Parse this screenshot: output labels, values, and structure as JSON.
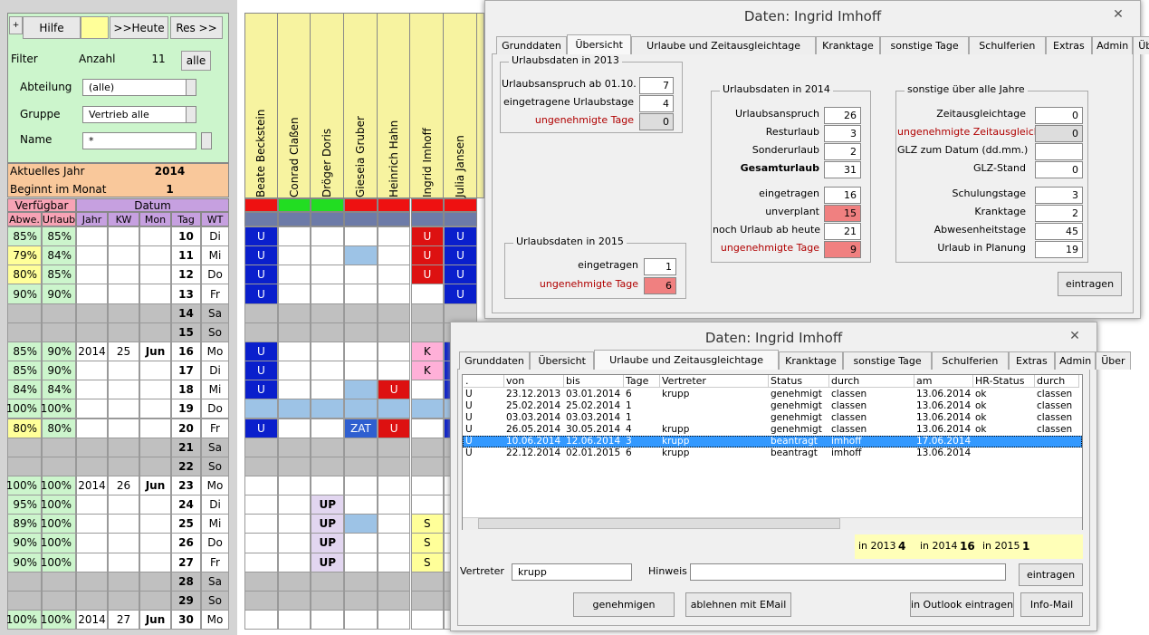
{
  "left": {
    "buttons": {
      "small": "+",
      "hilfe": "Hilfe",
      "heute": ">>Heute",
      "res": "Res >>"
    },
    "filter": {
      "label": "Filter",
      "anzahl_label": "Anzahl",
      "anzahl": 11,
      "alle": "alle"
    },
    "abteilung": {
      "label": "Abteilung",
      "value": "(alle)"
    },
    "gruppe": {
      "label": "Gruppe",
      "value": "Vertrieb alle"
    },
    "name": {
      "label": "Name",
      "value": "*"
    },
    "jahr": {
      "label": "Aktuelles Jahr",
      "value": 2014
    },
    "monat": {
      "label": "Beginnt im Monat",
      "value": 1
    },
    "headers": {
      "verfuegbar": "Verfügbar",
      "datum": "Datum",
      "cols": [
        "Abwe.",
        "Urlaub",
        "Jahr",
        "KW",
        "Mon",
        "Tag",
        "WT"
      ]
    },
    "rows": [
      [
        "85%",
        "85%",
        null,
        null,
        null,
        10,
        "Di"
      ],
      [
        "79%",
        "84%",
        null,
        null,
        null,
        11,
        "Mi"
      ],
      [
        "80%",
        "85%",
        null,
        null,
        null,
        12,
        "Do"
      ],
      [
        "90%",
        "90%",
        null,
        null,
        null,
        13,
        "Fr"
      ],
      [
        null,
        null,
        null,
        null,
        null,
        14,
        "Sa"
      ],
      [
        null,
        null,
        null,
        null,
        null,
        15,
        "So"
      ],
      [
        "85%",
        "90%",
        2014,
        25,
        "Jun",
        16,
        "Mo"
      ],
      [
        "85%",
        "90%",
        null,
        null,
        null,
        17,
        "Di"
      ],
      [
        "84%",
        "84%",
        null,
        null,
        null,
        18,
        "Mi"
      ],
      [
        "100%",
        "100%",
        null,
        null,
        null,
        19,
        "Do"
      ],
      [
        "80%",
        "80%",
        null,
        null,
        null,
        20,
        "Fr"
      ],
      [
        null,
        null,
        null,
        null,
        null,
        21,
        "Sa"
      ],
      [
        null,
        null,
        null,
        null,
        null,
        22,
        "So"
      ],
      [
        "100%",
        "100%",
        2014,
        26,
        "Jun",
        23,
        "Mo"
      ],
      [
        "95%",
        "100%",
        null,
        null,
        null,
        24,
        "Di"
      ],
      [
        "89%",
        "100%",
        null,
        null,
        null,
        25,
        "Mi"
      ],
      [
        "90%",
        "100%",
        null,
        null,
        null,
        26,
        "Do"
      ],
      [
        "90%",
        "100%",
        null,
        null,
        null,
        27,
        "Fr"
      ],
      [
        null,
        null,
        null,
        null,
        null,
        28,
        "Sa"
      ],
      [
        null,
        null,
        null,
        null,
        null,
        29,
        "So"
      ],
      [
        "100%",
        "100%",
        2014,
        27,
        "Jun",
        30,
        "Mo"
      ]
    ]
  },
  "planner": {
    "names": [
      "Beate Beckstein",
      "Conrad Claßen",
      "Dröger Doris",
      "Gieseia Gruber",
      "Heinrich Hahn",
      "Ingrid Imhoff",
      "Julia Jansen"
    ],
    "status_colors": [
      "#ee1111",
      "#22dd22",
      "#22dd22",
      "#ee1111",
      "#ee1111",
      "#ee1111",
      "#ee1111"
    ],
    "cells": [
      [
        {
          "t": "U",
          "c": "#0a1fcc"
        },
        null,
        null,
        null,
        null,
        {
          "t": "U",
          "c": "#dd1111"
        },
        {
          "t": "U",
          "c": "#0a1fcc"
        }
      ],
      [
        {
          "t": "U",
          "c": "#0a1fcc"
        },
        null,
        null,
        {
          "c": "#9dc3e6"
        },
        null,
        {
          "t": "U",
          "c": "#dd1111"
        },
        {
          "t": "U",
          "c": "#0a1fcc"
        }
      ],
      [
        {
          "t": "U",
          "c": "#0a1fcc"
        },
        null,
        null,
        null,
        null,
        {
          "t": "U",
          "c": "#dd1111"
        },
        {
          "t": "U",
          "c": "#0a1fcc"
        }
      ],
      [
        {
          "t": "U",
          "c": "#0a1fcc"
        },
        null,
        null,
        null,
        null,
        null,
        {
          "t": "U",
          "c": "#0a1fcc"
        }
      ],
      null,
      null,
      [
        {
          "t": "U",
          "c": "#0a1fcc"
        },
        null,
        null,
        null,
        null,
        {
          "t": "K",
          "c": "#ffb0d8"
        },
        {
          "c": "#0a1fcc"
        }
      ],
      [
        {
          "t": "U",
          "c": "#0a1fcc"
        },
        null,
        null,
        null,
        null,
        {
          "t": "K",
          "c": "#ffb0d8"
        },
        {
          "c": "#0a1fcc"
        }
      ],
      [
        {
          "t": "U",
          "c": "#0a1fcc"
        },
        null,
        null,
        {
          "c": "#9dc3e6"
        },
        {
          "t": "U",
          "c": "#dd1111"
        },
        null,
        {
          "c": "#0a1fcc"
        }
      ],
      [
        {
          "c": "#9dc3e6"
        },
        {
          "c": "#9dc3e6"
        },
        {
          "c": "#9dc3e6"
        },
        {
          "c": "#9dc3e6"
        },
        {
          "c": "#9dc3e6"
        },
        {
          "c": "#9dc3e6"
        },
        {
          "c": "#9dc3e6"
        }
      ],
      [
        {
          "t": "U",
          "c": "#0a1fcc"
        },
        null,
        null,
        {
          "t": "ZAT",
          "c": "#2f5fd0"
        },
        {
          "t": "U",
          "c": "#dd1111"
        },
        null,
        {
          "c": "#0a1fcc"
        }
      ],
      null,
      null,
      null,
      [
        null,
        null,
        {
          "t": "UP",
          "c": "#e2d6f0"
        },
        null,
        null,
        null,
        null
      ],
      [
        null,
        null,
        {
          "t": "UP",
          "c": "#e2d6f0"
        },
        {
          "c": "#9dc3e6"
        },
        null,
        {
          "t": "S",
          "c": "#ffff99"
        },
        null
      ],
      [
        null,
        null,
        {
          "t": "UP",
          "c": "#e2d6f0"
        },
        null,
        null,
        {
          "t": "S",
          "c": "#ffff99"
        },
        null
      ],
      [
        null,
        null,
        {
          "t": "UP",
          "c": "#e2d6f0"
        },
        null,
        null,
        {
          "t": "S",
          "c": "#ffff99"
        },
        null
      ],
      null,
      null,
      null
    ]
  },
  "dialog1": {
    "title": "Daten: Ingrid Imhoff",
    "tabs": [
      "Grunddaten",
      "Übersicht",
      "Urlaube und Zeitausgleichtage",
      "Kranktage",
      "sonstige Tage",
      "Schulferien",
      "Extras",
      "Admin",
      "Über"
    ],
    "active_tab": 1,
    "groups": [
      {
        "title": "Urlaubsdaten in 2013",
        "items": [
          {
            "label": "Urlaubsanspruch ab 01.10.",
            "value": 7
          },
          {
            "label": "eingetragene Urlaubstage",
            "value": 4
          },
          {
            "label": "ungenehmigte Tage",
            "value": 0,
            "style": "red",
            "box": "gray"
          }
        ]
      },
      {
        "title": "Urlaubsdaten in 2015",
        "items": [
          {
            "label": "eingetragen",
            "value": 1
          },
          {
            "label": "ungenehmigte Tage",
            "value": 6,
            "style": "red",
            "box": "red"
          }
        ]
      },
      {
        "title": "Urlaubsdaten in 2014",
        "items": [
          {
            "label": "Urlaubsanspruch",
            "value": 26
          },
          {
            "label": "Resturlaub",
            "value": 3
          },
          {
            "label": "Sonderurlaub",
            "value": 2
          },
          {
            "label": "Gesamturlaub",
            "value": 31,
            "style": "bold"
          },
          {
            "label": "eingetragen",
            "value": 16
          },
          {
            "label": "unverplant",
            "value": 15,
            "box": "red"
          },
          {
            "label": "noch Urlaub ab heute",
            "value": 21
          },
          {
            "label": "ungenehmigte Tage",
            "value": 9,
            "style": "red",
            "box": "red"
          }
        ]
      },
      {
        "title": "sonstige über alle Jahre",
        "items": [
          {
            "label": "Zeitausgleichtage",
            "value": 0
          },
          {
            "label": "ungenehmigte Zeitausgleiche",
            "value": 0,
            "style": "red",
            "box": "gray"
          },
          {
            "label": "GLZ zum Datum (dd.mm.)",
            "value": null
          },
          {
            "label": "GLZ-Stand",
            "value": 0
          },
          {
            "label": "Schulungstage",
            "value": 3
          },
          {
            "label": "Kranktage",
            "value": 2
          },
          {
            "label": "Abwesenheitstage",
            "value": 45
          },
          {
            "label": "Urlaub in Planung",
            "value": 19
          }
        ]
      }
    ],
    "button": "eintragen"
  },
  "dialog2": {
    "title": "Daten: Ingrid Imhoff",
    "tabs": [
      "Grunddaten",
      "Übersicht",
      "Urlaube und Zeitausgleichtage",
      "Kranktage",
      "sonstige Tage",
      "Schulferien",
      "Extras",
      "Admin",
      "Über"
    ],
    "active_tab": 2,
    "columns": [
      ".",
      "von",
      "bis",
      "Tage",
      "Vertreter",
      "Status",
      "durch",
      "am",
      "HR-Status",
      "durch"
    ],
    "rows": [
      [
        "U",
        "23.12.2013",
        "03.01.2014",
        6,
        "krupp",
        "genehmigt",
        "classen",
        "13.06.2014",
        "ok",
        "classen"
      ],
      [
        "U",
        "25.02.2014",
        "25.02.2014",
        1,
        null,
        "genehmigt",
        "classen",
        "13.06.2014",
        "ok",
        "classen"
      ],
      [
        "U",
        "03.03.2014",
        "03.03.2014",
        1,
        null,
        "genehmigt",
        "classen",
        "13.06.2014",
        "ok",
        "classen"
      ],
      [
        "U",
        "26.05.2014",
        "30.05.2014",
        4,
        "krupp",
        "genehmigt",
        "classen",
        "13.06.2014",
        "ok",
        "classen"
      ],
      [
        "U",
        "10.06.2014",
        "12.06.2014",
        3,
        "krupp",
        "beantragt",
        "imhoff",
        "17.06.2014",
        null,
        null
      ],
      [
        "U",
        "22.12.2014",
        "02.01.2015",
        6,
        "krupp",
        "beantragt",
        "imhoff",
        "13.06.2014",
        null,
        null
      ]
    ],
    "selected_row": 4,
    "summary": [
      {
        "label": "in 2013",
        "value": 4
      },
      {
        "label": "in 2014",
        "value": 16
      },
      {
        "label": "in 2015",
        "value": 1
      }
    ],
    "vertreter_label": "Vertreter",
    "vertreter": "krupp",
    "hinweis_label": "Hinweis",
    "buttons": {
      "eintragen": "eintragen",
      "genehmigen": "genehmigen",
      "ablehnen": "ablehnen mit EMail",
      "outlook": "in Outlook eintragen",
      "info": "Info-Mail"
    }
  }
}
